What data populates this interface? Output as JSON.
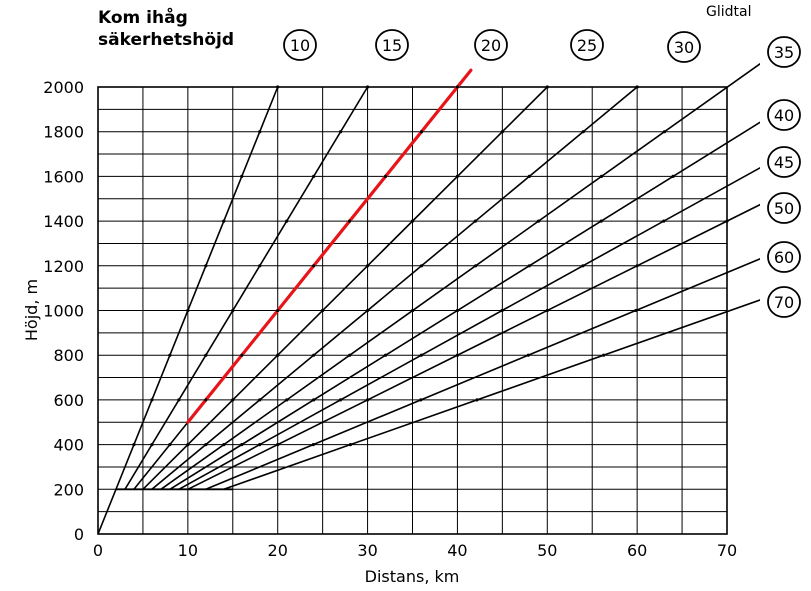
{
  "chart_data": {
    "type": "line",
    "title": "",
    "note_lines": [
      "Kom ihåg",
      "säkerhetshöjd"
    ],
    "legend_title": "Glidtal",
    "xlabel": "Distans, km",
    "ylabel": "Höjd, m",
    "xlim": [
      0,
      70
    ],
    "ylim": [
      0,
      2000
    ],
    "x_ticks": [
      0,
      10,
      20,
      30,
      40,
      50,
      60,
      70
    ],
    "y_ticks": [
      0,
      200,
      400,
      600,
      800,
      1000,
      1200,
      1400,
      1600,
      1800,
      2000
    ],
    "x_tick_labels": [
      "0",
      "10",
      "20",
      "30",
      "40",
      "50",
      "60",
      "70"
    ],
    "y_tick_labels": [
      "0",
      "200",
      "400",
      "600",
      "800",
      "1000",
      "1200",
      "1400",
      "1600",
      "1800",
      "2000"
    ],
    "grid": true,
    "series": [
      {
        "name": "10",
        "points": [
          [
            0,
            0
          ],
          [
            20,
            2000
          ]
        ]
      },
      {
        "name": "15",
        "points": [
          [
            3,
            200
          ],
          [
            30,
            2000
          ]
        ]
      },
      {
        "name": "20",
        "points": [
          [
            4,
            200
          ],
          [
            40,
            2000
          ]
        ],
        "highlight": {
          "color": "#e8141a",
          "points": [
            [
              10,
              500
            ],
            [
              41.5,
              2075
            ]
          ]
        }
      },
      {
        "name": "25",
        "points": [
          [
            5,
            200
          ],
          [
            50,
            2000
          ]
        ]
      },
      {
        "name": "30",
        "points": [
          [
            6,
            200
          ],
          [
            60,
            2000
          ]
        ]
      },
      {
        "name": "35",
        "points": [
          [
            7,
            200
          ],
          [
            76,
            2170
          ]
        ]
      },
      {
        "name": "40",
        "points": [
          [
            8,
            200
          ],
          [
            76,
            1900
          ]
        ]
      },
      {
        "name": "45",
        "points": [
          [
            9,
            200
          ],
          [
            76,
            1690
          ]
        ]
      },
      {
        "name": "50",
        "points": [
          [
            10,
            200
          ],
          [
            76,
            1520
          ]
        ]
      },
      {
        "name": "60",
        "points": [
          [
            12,
            200
          ],
          [
            76,
            1270
          ]
        ]
      },
      {
        "name": "70",
        "points": [
          [
            14,
            200
          ],
          [
            76,
            1080
          ]
        ]
      }
    ]
  }
}
